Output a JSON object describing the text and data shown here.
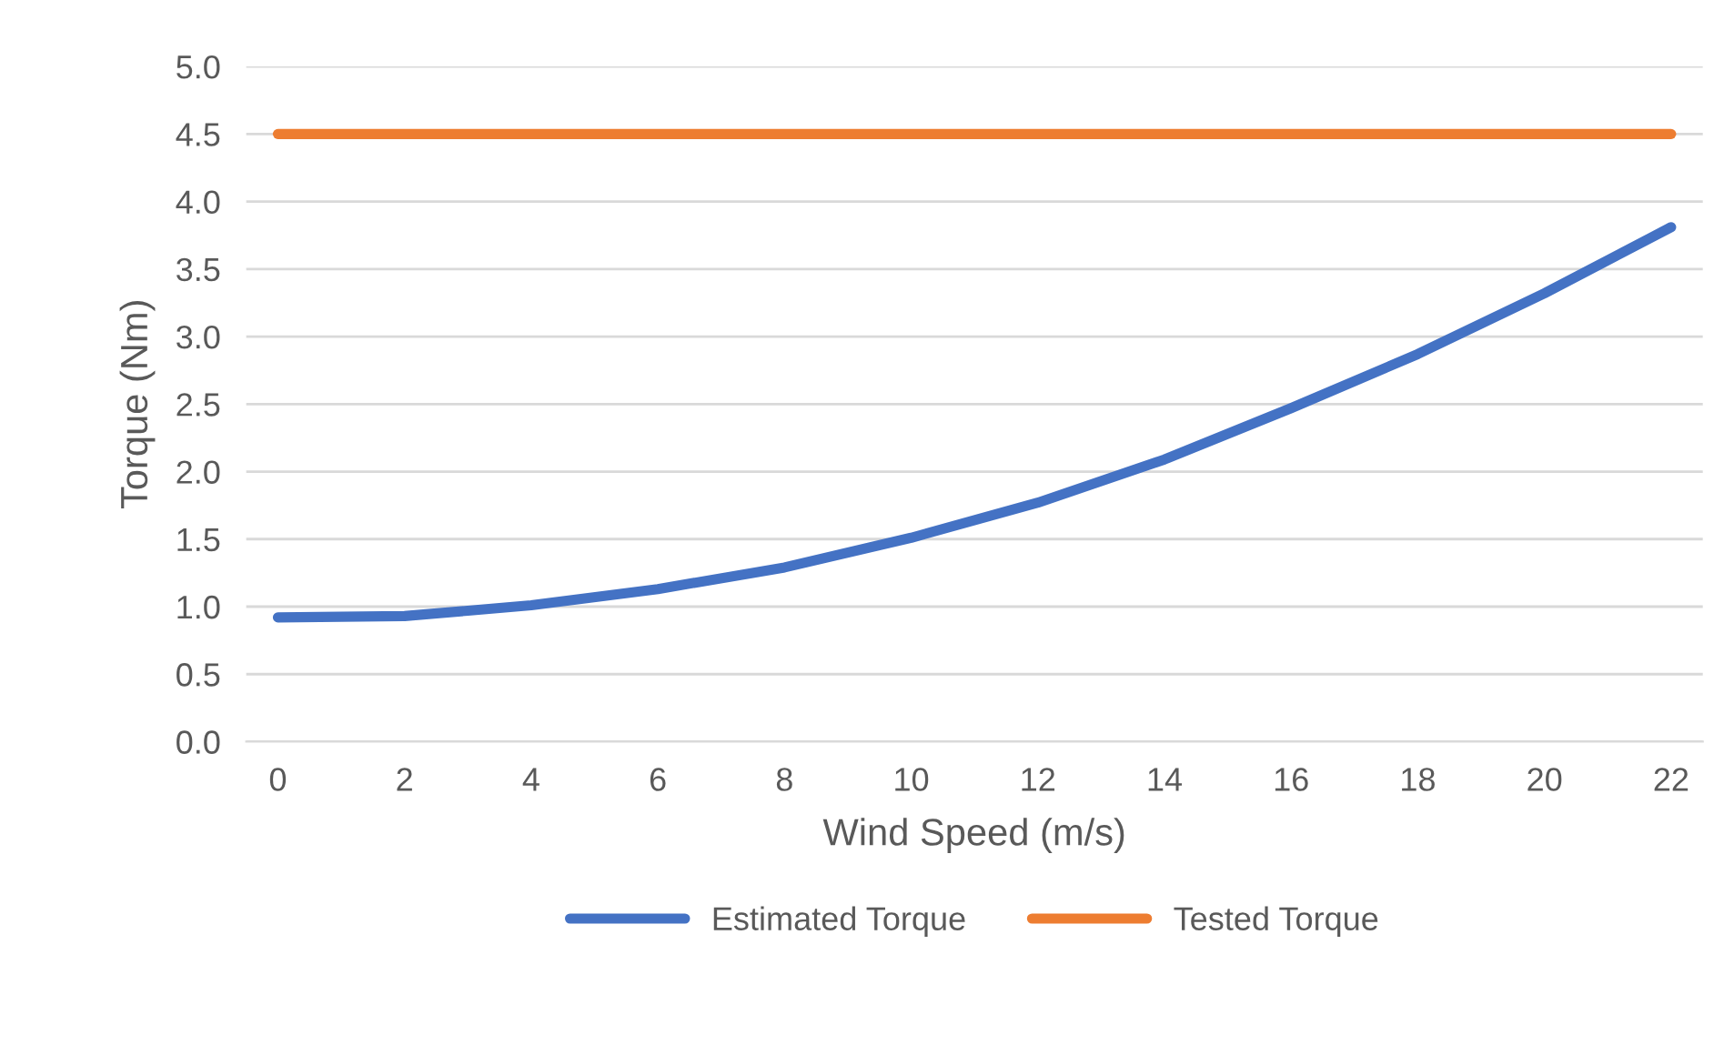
{
  "chart_data": {
    "type": "line",
    "xlabel": "Wind Speed (m/s)",
    "ylabel": "Torque (Nm)",
    "xlim": [
      -0.5,
      22.5
    ],
    "xticks": [
      0,
      2,
      4,
      6,
      8,
      10,
      12,
      14,
      16,
      18,
      20,
      22
    ],
    "ylim": [
      0,
      5
    ],
    "yticks": [
      {
        "value": 0,
        "label": "0.0"
      },
      {
        "value": 0.5,
        "label": "0.5"
      },
      {
        "value": 1,
        "label": "1.0"
      },
      {
        "value": 1.5,
        "label": "1.5"
      },
      {
        "value": 2,
        "label": "2.0"
      },
      {
        "value": 2.5,
        "label": "2.5"
      },
      {
        "value": 3,
        "label": "3.0"
      },
      {
        "value": 3.5,
        "label": "3.5"
      },
      {
        "value": 4,
        "label": "4.0"
      },
      {
        "value": 4.5,
        "label": "4.5"
      },
      {
        "value": 5,
        "label": "5.0"
      }
    ],
    "grid": "y",
    "legend": "bottom",
    "marker": "none",
    "line_style": "solid",
    "series": [
      {
        "name": "Estimated Torque",
        "color": "#4472c4",
        "x": [
          0,
          2,
          3,
          4,
          6,
          8,
          10,
          12,
          14,
          16,
          18,
          20,
          22
        ],
        "values": [
          0.92,
          0.93,
          0.97,
          1.01,
          1.13,
          1.29,
          1.51,
          1.77,
          2.09,
          2.47,
          2.87,
          3.32,
          3.81
        ]
      },
      {
        "name": "Tested Torque",
        "color": "#ed7d31",
        "x": [
          0,
          22
        ],
        "values": [
          4.5,
          4.5
        ]
      }
    ]
  }
}
